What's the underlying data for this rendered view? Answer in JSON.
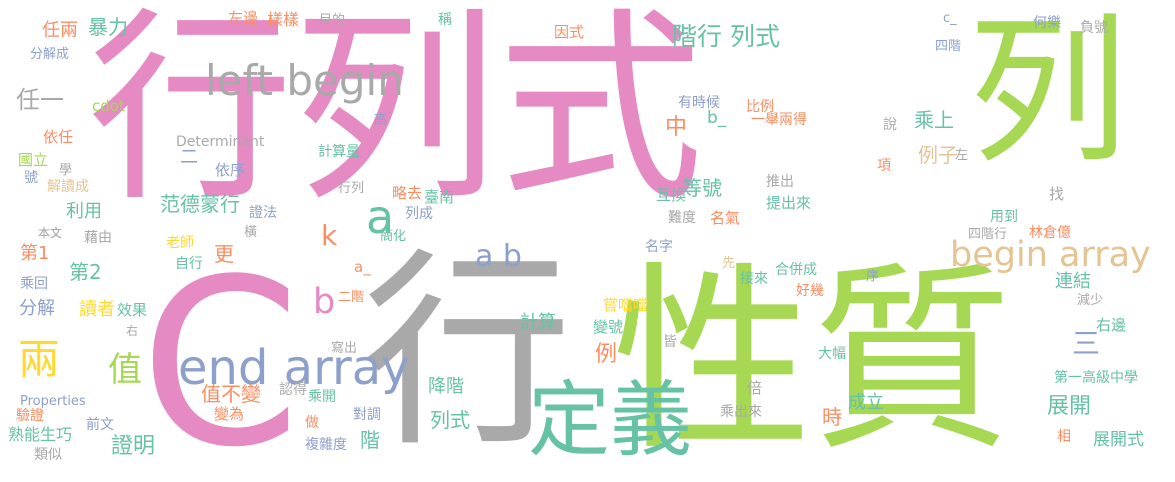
{
  "colors": {
    "pink": "#e58ac3",
    "green": "#a6d854",
    "grey": "#a9a9a9",
    "teal": "#66c2a5",
    "blue": "#8da0cb",
    "orange": "#fc8d62",
    "yellow": "#ffd92f",
    "tan": "#e5c494"
  },
  "words": [
    {
      "text": "行列式",
      "color": "pink"
    },
    {
      "text": "列",
      "color": "green"
    },
    {
      "text": "性質",
      "color": "green"
    },
    {
      "text": "C",
      "color": "pink"
    },
    {
      "text": "行",
      "color": "grey"
    },
    {
      "text": "left begin",
      "color": "grey"
    },
    {
      "text": "定義",
      "color": "teal"
    },
    {
      "text": "end array",
      "color": "blue"
    },
    {
      "text": "begin array",
      "color": "tan"
    },
    {
      "text": "a b",
      "color": "blue"
    },
    {
      "text": "a",
      "color": "teal"
    },
    {
      "text": "b",
      "color": "pink"
    },
    {
      "text": "k",
      "color": "orange"
    },
    {
      "text": "兩",
      "color": "yellow"
    },
    {
      "text": "值",
      "color": "green"
    },
    {
      "text": "階行 列式",
      "color": "teal"
    },
    {
      "text": "任一",
      "color": "grey"
    },
    {
      "text": "暴力",
      "color": "teal"
    },
    {
      "text": "任兩",
      "color": "orange"
    },
    {
      "text": "分解成",
      "color": "blue"
    },
    {
      "text": "本文",
      "color": "grey"
    },
    {
      "text": "cdot",
      "color": "green"
    },
    {
      "text": "依任",
      "color": "orange"
    },
    {
      "text": "國立",
      "color": "green"
    },
    {
      "text": "號",
      "color": "blue"
    },
    {
      "text": "學",
      "color": "grey"
    },
    {
      "text": "解讀成",
      "color": "tan"
    },
    {
      "text": "利用",
      "color": "teal"
    },
    {
      "text": "第1",
      "color": "orange"
    },
    {
      "text": "第2",
      "color": "teal"
    },
    {
      "text": "本文",
      "color": "grey"
    },
    {
      "text": "藉由",
      "color": "grey"
    },
    {
      "text": "乘回",
      "color": "blue"
    },
    {
      "text": "分解",
      "color": "blue"
    },
    {
      "text": "讀者",
      "color": "yellow"
    },
    {
      "text": "效果",
      "color": "teal"
    },
    {
      "text": "右",
      "color": "grey"
    },
    {
      "text": "Properties",
      "color": "blue"
    },
    {
      "text": "驗證",
      "color": "orange"
    },
    {
      "text": "熟能生巧",
      "color": "teal"
    },
    {
      "text": "前文",
      "color": "blue"
    },
    {
      "text": "類似",
      "color": "grey"
    },
    {
      "text": "證明",
      "color": "teal"
    },
    {
      "text": "值不變",
      "color": "orange"
    },
    {
      "text": "認得",
      "color": "grey"
    },
    {
      "text": "乘開",
      "color": "teal"
    },
    {
      "text": "變為",
      "color": "orange"
    },
    {
      "text": "橫",
      "color": "grey"
    },
    {
      "text": "寫出",
      "color": "grey"
    },
    {
      "text": "做",
      "color": "orange"
    },
    {
      "text": "複雜度",
      "color": "blue"
    },
    {
      "text": "對調",
      "color": "blue"
    },
    {
      "text": "左邊",
      "color": "orange"
    },
    {
      "text": "樣樣",
      "color": "orange"
    },
    {
      "text": "目的",
      "color": "grey"
    },
    {
      "text": "稱",
      "color": "teal"
    },
    {
      "text": "因式",
      "color": "orange"
    },
    {
      "text": "c_",
      "color": "blue"
    },
    {
      "text": "四階",
      "color": "blue"
    },
    {
      "text": "何樂",
      "color": "blue"
    },
    {
      "text": "負號",
      "color": "grey"
    },
    {
      "text": "中",
      "color": "orange"
    },
    {
      "text": "b_",
      "color": "teal"
    },
    {
      "text": "比例",
      "color": "orange"
    },
    {
      "text": "有時候",
      "color": "blue"
    },
    {
      "text": "一舉兩得",
      "color": "orange"
    },
    {
      "text": "乘上",
      "color": "teal"
    },
    {
      "text": "例子",
      "color": "tan"
    },
    {
      "text": "高",
      "color": "blue"
    },
    {
      "text": "說",
      "color": "grey"
    },
    {
      "text": "Determinant",
      "color": "grey"
    },
    {
      "text": "二",
      "color": "blue"
    },
    {
      "text": "依序",
      "color": "blue"
    },
    {
      "text": "計算量",
      "color": "teal"
    },
    {
      "text": "項",
      "color": "orange"
    },
    {
      "text": "左",
      "color": "grey"
    },
    {
      "text": "范德蒙行",
      "color": "teal"
    },
    {
      "text": "等號",
      "color": "teal"
    },
    {
      "text": "互換",
      "color": "teal"
    },
    {
      "text": "推出",
      "color": "grey"
    },
    {
      "text": "提出來",
      "color": "teal"
    },
    {
      "text": "找",
      "color": "grey"
    },
    {
      "text": "行列",
      "color": "grey"
    },
    {
      "text": "略去",
      "color": "orange"
    },
    {
      "text": "臺南",
      "color": "teal"
    },
    {
      "text": "證法",
      "color": "blue"
    },
    {
      "text": "列成",
      "color": "blue"
    },
    {
      "text": "難度",
      "color": "grey"
    },
    {
      "text": "名氣",
      "color": "orange"
    },
    {
      "text": "用到",
      "color": "teal"
    },
    {
      "text": "四階行",
      "color": "grey"
    },
    {
      "text": "林倉億",
      "color": "orange"
    },
    {
      "text": "老師",
      "color": "yellow"
    },
    {
      "text": "簡化",
      "color": "teal"
    },
    {
      "text": "自行",
      "color": "teal"
    },
    {
      "text": "更",
      "color": "orange"
    },
    {
      "text": "名字",
      "color": "blue"
    },
    {
      "text": "先",
      "color": "tan"
    },
    {
      "text": "合併成",
      "color": "teal"
    },
    {
      "text": "序",
      "color": "blue"
    },
    {
      "text": "接來",
      "color": "teal"
    },
    {
      "text": "好幾",
      "color": "orange"
    },
    {
      "text": "連結",
      "color": "teal"
    },
    {
      "text": "減少",
      "color": "grey"
    },
    {
      "text": "a_",
      "color": "orange"
    },
    {
      "text": "二階",
      "color": "orange"
    },
    {
      "text": "計算",
      "color": "teal"
    },
    {
      "text": "嘗噹噹",
      "color": "yellow"
    },
    {
      "text": "變號",
      "color": "teal"
    },
    {
      "text": "皆",
      "color": "grey"
    },
    {
      "text": "例",
      "color": "orange"
    },
    {
      "text": "三",
      "color": "blue"
    },
    {
      "text": "右邊",
      "color": "teal"
    },
    {
      "text": "降階",
      "color": "teal"
    },
    {
      "text": "大幅",
      "color": "teal"
    },
    {
      "text": "倍",
      "color": "grey"
    },
    {
      "text": "第一高級中學",
      "color": "teal"
    },
    {
      "text": "列式",
      "color": "teal"
    },
    {
      "text": "成立",
      "color": "teal"
    },
    {
      "text": "展開",
      "color": "teal"
    },
    {
      "text": "階",
      "color": "teal"
    },
    {
      "text": "時",
      "color": "orange"
    },
    {
      "text": "乘出來",
      "color": "grey"
    },
    {
      "text": "相",
      "color": "orange"
    },
    {
      "text": "展開式",
      "color": "teal"
    }
  ]
}
